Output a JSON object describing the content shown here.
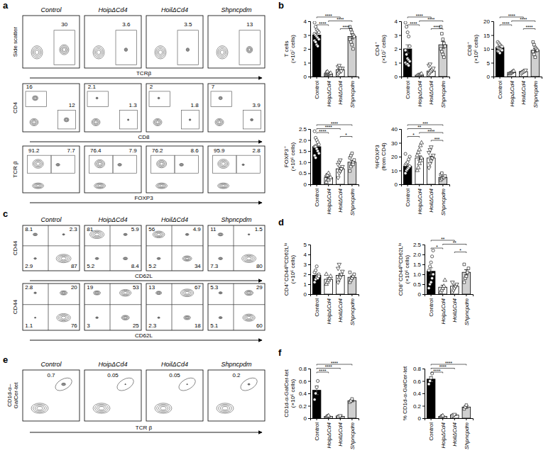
{
  "panel_labels": [
    "a",
    "b",
    "c",
    "d",
    "e",
    "f"
  ],
  "chart_data": [
    {
      "type": "flow",
      "titles": [
        "Control",
        "HoipΔCd4",
        "HoilΔCd4",
        "Shpncpdm"
      ],
      "xlabel": "TCRβ",
      "ylabel": "Side scatter",
      "gates": [
        [
          30
        ],
        [
          3.6
        ],
        [
          3.5
        ],
        [
          13
        ]
      ]
    },
    {
      "type": "flow",
      "xlabel": "CD8",
      "ylabel": "CD4",
      "gates": [
        [
          16,
          12
        ],
        [
          2.1,
          1.3
        ],
        [
          2,
          1.8
        ],
        [
          7,
          3.9
        ]
      ]
    },
    {
      "type": "flow",
      "xlabel": "FOXP3",
      "ylabel": "TCR β",
      "gates": [
        [
          91.2,
          7.7
        ],
        [
          76.4,
          7.9
        ],
        [
          76.2,
          8.6
        ],
        [
          95.9,
          2.8
        ]
      ]
    },
    {
      "type": "bar",
      "ylabel": [
        "T cells",
        "(×10⁷ cells)"
      ],
      "categories": [
        "Control",
        "HoipΔCd4",
        "HoilΔCd4",
        "Shpncpdm"
      ],
      "values": [
        3.0,
        0.2,
        0.5,
        2.9
      ],
      "errors": [
        0.15,
        0.04,
        0.07,
        0.18
      ],
      "points": [
        [
          3.9,
          3.6,
          3.4,
          3.3,
          3.2,
          3.1,
          3.0,
          2.9,
          2.8,
          2.7,
          2.6,
          2.5,
          2.3,
          2.2
        ],
        [
          0.1,
          0.15,
          0.2,
          0.2,
          0.25,
          0.3,
          0.35
        ],
        [
          0.2,
          0.3,
          0.4,
          0.5,
          0.6,
          0.7,
          0.8,
          0.6,
          0.4
        ],
        [
          3.6,
          3.4,
          3.2,
          3.0,
          2.9,
          2.7,
          2.5,
          2.3,
          2.0
        ]
      ],
      "colors": [
        "#000000",
        "#ffffff",
        "#ffffff",
        "#d0d0d0"
      ],
      "marker": "open",
      "ylim": [
        0,
        4
      ],
      "yticks": [
        0,
        1,
        2,
        3,
        4
      ],
      "annotations": [
        {
          "between": [
            "Control",
            "HoilΔCd4"
          ],
          "label": "****"
        },
        {
          "between": [
            "HoipΔCd4",
            "Shpncpdm"
          ],
          "label": "****"
        },
        {
          "between": [
            "Control",
            "HoipΔCd4"
          ],
          "label": "****"
        },
        {
          "between": [
            "HoilΔCd4",
            "Shpncpdm"
          ],
          "label": "****"
        }
      ]
    },
    {
      "type": "bar",
      "ylabel": [
        "CD4⁺",
        "(×10⁷ cells)"
      ],
      "categories": [
        "Control",
        "HoipΔCd4",
        "HoilΔCd4",
        "Shpncpdm"
      ],
      "values": [
        2.0,
        0.1,
        0.4,
        2.3
      ],
      "errors": [
        0.3,
        0.03,
        0.1,
        0.25
      ],
      "points": [
        [
          3.9,
          3.6,
          3.2,
          2.9,
          2.2,
          1.9,
          1.6,
          1.3,
          1.2,
          1.1,
          1.0,
          0.9,
          0.9,
          0.8
        ],
        [
          0.05,
          0.1,
          0.1,
          0.15,
          0.2
        ],
        [
          0.2,
          0.3,
          0.4,
          0.5,
          0.6,
          0.8,
          0.9
        ],
        [
          3.6,
          3.1,
          2.7,
          2.4,
          2.2,
          2.0,
          1.8,
          1.6,
          1.4
        ]
      ],
      "colors": [
        "#000000",
        "#ffffff",
        "#ffffff",
        "#d0d0d0"
      ],
      "marker": "open",
      "ylim": [
        0,
        4
      ],
      "yticks": [
        0,
        1,
        2,
        3,
        4
      ],
      "annotations": [
        {
          "between": [
            "Control",
            "HoilΔCd4"
          ],
          "label": "****"
        },
        {
          "between": [
            "HoipΔCd4",
            "Shpncpdm"
          ],
          "label": "****"
        },
        {
          "between": [
            "Control",
            "HoipΔCd4"
          ],
          "label": "****"
        },
        {
          "between": [
            "HoilΔCd4",
            "Shpncpdm"
          ],
          "label": "****"
        }
      ]
    },
    {
      "type": "bar",
      "ylabel": [
        "CD8⁺",
        "(×10⁶ cells)"
      ],
      "categories": [
        "Control",
        "HoipΔCd4",
        "HoilΔCd4",
        "Shpncpdm"
      ],
      "values": [
        10.5,
        1.5,
        1.8,
        9.5
      ],
      "errors": [
        0.35,
        0.2,
        0.2,
        0.6
      ],
      "points": [
        [
          12.5,
          12,
          11.5,
          11,
          10.8,
          10.5,
          10.2,
          10,
          9.8,
          9.5,
          9.2,
          9,
          8.5
        ],
        [
          1,
          1.2,
          1.5,
          1.8,
          2
        ],
        [
          1.2,
          1.5,
          1.8,
          2,
          2.3
        ],
        [
          12.5,
          11.5,
          10.5,
          10,
          9.5,
          9,
          8,
          7
        ]
      ],
      "colors": [
        "#000000",
        "#ffffff",
        "#ffffff",
        "#d0d0d0"
      ],
      "marker": "open",
      "ylim": [
        0,
        20
      ],
      "yticks": [
        0,
        5,
        10,
        15,
        20
      ],
      "annotations": [
        {
          "between": [
            "Control",
            "HoilΔCd4"
          ],
          "label": "****"
        },
        {
          "between": [
            "HoipΔCd4",
            "Shpncpdm"
          ],
          "label": "****"
        },
        {
          "between": [
            "Control",
            "HoipΔCd4"
          ],
          "label": "****"
        },
        {
          "between": [
            "HoilΔCd4",
            "Shpncpdm"
          ],
          "label": "****"
        }
      ]
    },
    {
      "type": "bar",
      "ylabel": [
        "FOXP3⁺",
        "(×10⁶ cells)"
      ],
      "categories": [
        "Control",
        "HoipΔCd4",
        "HoilΔCd4",
        "Shpncpdm"
      ],
      "values": [
        1.7,
        0.3,
        0.7,
        1.0
      ],
      "errors": [
        0.1,
        0.04,
        0.07,
        0.08
      ],
      "points": [
        [
          2.4,
          2.1,
          2.0,
          1.9,
          1.8,
          1.7,
          1.7,
          1.6,
          1.5,
          1.4,
          1.3,
          1.2
        ],
        [
          0.1,
          0.2,
          0.2,
          0.3,
          0.3,
          0.4,
          0.4,
          0.5
        ],
        [
          0.3,
          0.5,
          0.6,
          0.7,
          0.8,
          0.9,
          1.0,
          1.1,
          0.7
        ],
        [
          0.6,
          0.8,
          0.9,
          1.0,
          1.1,
          1.2,
          1.3,
          1.4,
          0.9
        ]
      ],
      "colors": [
        "#000000",
        "#ffffff",
        "#ffffff",
        "#d0d0d0"
      ],
      "marker": "open",
      "ylim": [
        0,
        2.5
      ],
      "yticks": [
        0,
        0.5,
        {
          "value": 1,
          "label": "1.0"
        },
        1.5,
        {
          "value": 2,
          "label": "2.0"
        },
        2.5
      ],
      "annotations": [
        {
          "between": [
            "Control",
            "Shpncpdm"
          ],
          "label": "****"
        },
        {
          "between": [
            "Control",
            "HoilΔCd4"
          ],
          "label": "****"
        },
        {
          "between": [
            "Control",
            "HoipΔCd4"
          ],
          "label": "****"
        },
        {
          "between": [
            "HoilΔCd4",
            "Shpncpdm"
          ],
          "label": "*"
        }
      ]
    },
    {
      "type": "bar",
      "ylabel": [
        "%FOXP3",
        "(from CD4)"
      ],
      "categories": [
        "Control",
        "HoipΔCd4",
        "HoilΔCd4",
        "Shpncpdm"
      ],
      "values": [
        13,
        19,
        19,
        5
      ],
      "errors": [
        1.2,
        1.5,
        1.3,
        0.6
      ],
      "points": [
        [
          8,
          10,
          11,
          12,
          13,
          14,
          15,
          16,
          18,
          20,
          22
        ],
        [
          10,
          12,
          15,
          17,
          19,
          21,
          23,
          25,
          28,
          30
        ],
        [
          12,
          15,
          17,
          19,
          21,
          23,
          25,
          27
        ],
        [
          3,
          4,
          5,
          5,
          6,
          7,
          8
        ]
      ],
      "colors": [
        "#000000",
        "#ffffff",
        "#ffffff",
        "#d0d0d0"
      ],
      "marker": "open",
      "ylim": [
        0,
        40
      ],
      "yticks": [
        0,
        10,
        20,
        30,
        40
      ],
      "annotations": [
        {
          "between": [
            "Control",
            "Shpncpdm"
          ],
          "label": "***"
        },
        {
          "between": [
            "Control",
            "HoilΔCd4"
          ],
          "label": "**"
        },
        {
          "between": [
            "HoipΔCd4",
            "Shpncpdm"
          ],
          "label": "****"
        },
        {
          "between": [
            "Control",
            "HoipΔCd4"
          ],
          "label": "*"
        },
        {
          "between": [
            "HoilΔCd4",
            "Shpncpdm"
          ],
          "label": "***"
        }
      ]
    },
    {
      "type": "flow",
      "titles": [
        "Control",
        "HoipΔCd4",
        "HoilΔCd4",
        "Shpncpdm"
      ],
      "xlabel": "CD62L",
      "ylabel": "CD44",
      "gates": [
        [
          8.1,
          2.3,
          2.9,
          87
        ],
        [
          81,
          5.9,
          5.2,
          8.4
        ],
        [
          56,
          4.9,
          5.2,
          34
        ],
        [
          11,
          1.5,
          7.3,
          80
        ]
      ]
    },
    {
      "type": "flow",
      "xlabel": "CD62L",
      "ylabel": "CD44",
      "gates": [
        [
          2.8,
          20,
          1.1,
          76
        ],
        [
          19,
          53,
          3,
          25
        ],
        [
          13,
          67,
          2.3,
          18
        ],
        [
          5.3,
          29,
          5.1,
          60
        ]
      ]
    },
    {
      "type": "bar",
      "ylabel": [
        "CD4⁺CD44ʰⁱCD62Lˡᵒ",
        "(×10⁶ cells)"
      ],
      "categories": [
        "Control",
        "HoipΔCd4",
        "HoilΔCd4",
        "Shpncpdm"
      ],
      "values": [
        1.9,
        1.5,
        1.9,
        1.7
      ],
      "errors": [
        0.12,
        0.15,
        0.13,
        0.12
      ],
      "points": [
        [
          1.2,
          1.5,
          1.7,
          1.9,
          2.0,
          2.2,
          2.4,
          2.8,
          1.6,
          1.8
        ],
        [
          1.0,
          1.2,
          1.4,
          1.6,
          1.8,
          2.0
        ],
        [
          1.2,
          1.5,
          1.8,
          2.0,
          2.3,
          2.6,
          3.0,
          1.7
        ],
        [
          1.2,
          1.4,
          1.6,
          1.8,
          2.0,
          2.2
        ]
      ],
      "colors": [
        "#000000",
        "#ffffff",
        "#ffffff",
        "#d0d0d0"
      ],
      "marker": "open",
      "ylim": [
        0,
        5
      ],
      "yticks": [
        0,
        1,
        2,
        3,
        4,
        5
      ],
      "annotations": []
    },
    {
      "type": "bar",
      "ylabel": [
        "CD8⁺CD44ʰⁱCD62Lˡᵒ",
        "(×10⁶ cells)"
      ],
      "categories": [
        "Control",
        "HoipΔCd4",
        "HoilΔCd4",
        "Shpncpdm"
      ],
      "values": [
        1.15,
        0.35,
        0.4,
        1.1
      ],
      "errors": [
        0.18,
        0.1,
        0.06,
        0.13
      ],
      "points": [
        [
          0.3,
          0.5,
          0.6,
          0.8,
          1.0,
          1.2,
          1.4,
          1.6,
          1.9,
          2.2
        ],
        [
          0.1,
          0.2,
          0.3,
          0.4,
          0.7
        ],
        [
          0.1,
          0.2,
          0.3,
          0.4,
          0.5,
          0.6
        ],
        [
          0.6,
          0.8,
          0.9,
          1.1,
          1.3,
          1.5
        ]
      ],
      "colors": [
        "#000000",
        "#ffffff",
        "#ffffff",
        "#d0d0d0"
      ],
      "marker": "open",
      "ylim": [
        0,
        2.5
      ],
      "yticks": [
        0,
        0.5,
        {
          "value": 1,
          "label": "1.0"
        },
        1.5,
        {
          "value": 2,
          "label": "2.0"
        },
        2.5
      ],
      "annotations": [
        {
          "between": [
            "Control",
            "HoilΔCd4"
          ],
          "label": "**"
        },
        {
          "between": [
            "HoipΔCd4",
            "Shpncpdm"
          ],
          "label": "**"
        },
        {
          "between": [
            "Control",
            "HoipΔCd4"
          ],
          "label": "*"
        },
        {
          "between": [
            "HoilΔCd4",
            "Shpncpdm"
          ],
          "label": "*"
        }
      ]
    },
    {
      "type": "flow",
      "titles": [
        "Control",
        "HoipΔCd4",
        "HoilΔCd4",
        "Shpncpdm"
      ],
      "xlabel": "TCR β",
      "ylabel": [
        "CD1d-α–",
        "GalCer-tet"
      ],
      "gates": [
        [
          0.7
        ],
        [
          0.05
        ],
        [
          0.05
        ],
        [
          0.2
        ]
      ]
    },
    {
      "type": "bar",
      "ylabel": [
        "CD1d-α-GalCer-tet",
        "(×10⁶ cells)"
      ],
      "categories": [
        "Control",
        "HoipΔCd4",
        "HoilΔCd4",
        "Shpncpdm"
      ],
      "values": [
        0.45,
        0.03,
        0.03,
        0.28
      ],
      "errors": [
        0.07,
        0.005,
        0.005,
        0.015
      ],
      "points": [
        [
          0.3,
          0.4,
          0.5,
          0.6
        ],
        [
          0.02,
          0.03,
          0.04
        ],
        [
          0.02,
          0.03,
          0.04
        ],
        [
          0.26,
          0.28,
          0.31
        ]
      ],
      "colors": [
        "#000000",
        "#ffffff",
        "#ffffff",
        "#d0d0d0"
      ],
      "marker": "open",
      "ylim": [
        0,
        0.8
      ],
      "yticks": [
        0,
        0.2,
        0.4,
        0.6,
        0.8
      ],
      "annotations": [
        {
          "between": [
            "Control",
            "Shpncpdm"
          ],
          "label": "****"
        },
        {
          "between": [
            "Control",
            "HoilΔCd4"
          ],
          "label": "****"
        },
        {
          "between": [
            "Control",
            "HoipΔCd4"
          ],
          "label": "****"
        }
      ]
    },
    {
      "type": "bar",
      "ylabel": [
        "% CD1d-α-GalCer-tet"
      ],
      "categories": [
        "Control",
        "HoipΔCd4",
        "HoilΔCd4",
        "Shpncpdm"
      ],
      "values": [
        0.63,
        0.03,
        0.05,
        0.18
      ],
      "errors": [
        0.04,
        0.005,
        0.005,
        0.02
      ],
      "points": [
        [
          0.55,
          0.6,
          0.65,
          0.72
        ],
        [
          0.02,
          0.03,
          0.04
        ],
        [
          0.04,
          0.05,
          0.06
        ],
        [
          0.15,
          0.18,
          0.21
        ]
      ],
      "colors": [
        "#000000",
        "#ffffff",
        "#ffffff",
        "#d0d0d0"
      ],
      "marker": "open",
      "ylim": [
        0,
        0.8
      ],
      "yticks": [
        0,
        0.2,
        0.4,
        0.6,
        0.8
      ],
      "annotations": [
        {
          "between": [
            "Control",
            "Shpncpdm"
          ],
          "label": "****"
        },
        {
          "between": [
            "Control",
            "HoilΔCd4"
          ],
          "label": "****"
        },
        {
          "between": [
            "Control",
            "HoipΔCd4"
          ],
          "label": "****"
        }
      ]
    }
  ]
}
